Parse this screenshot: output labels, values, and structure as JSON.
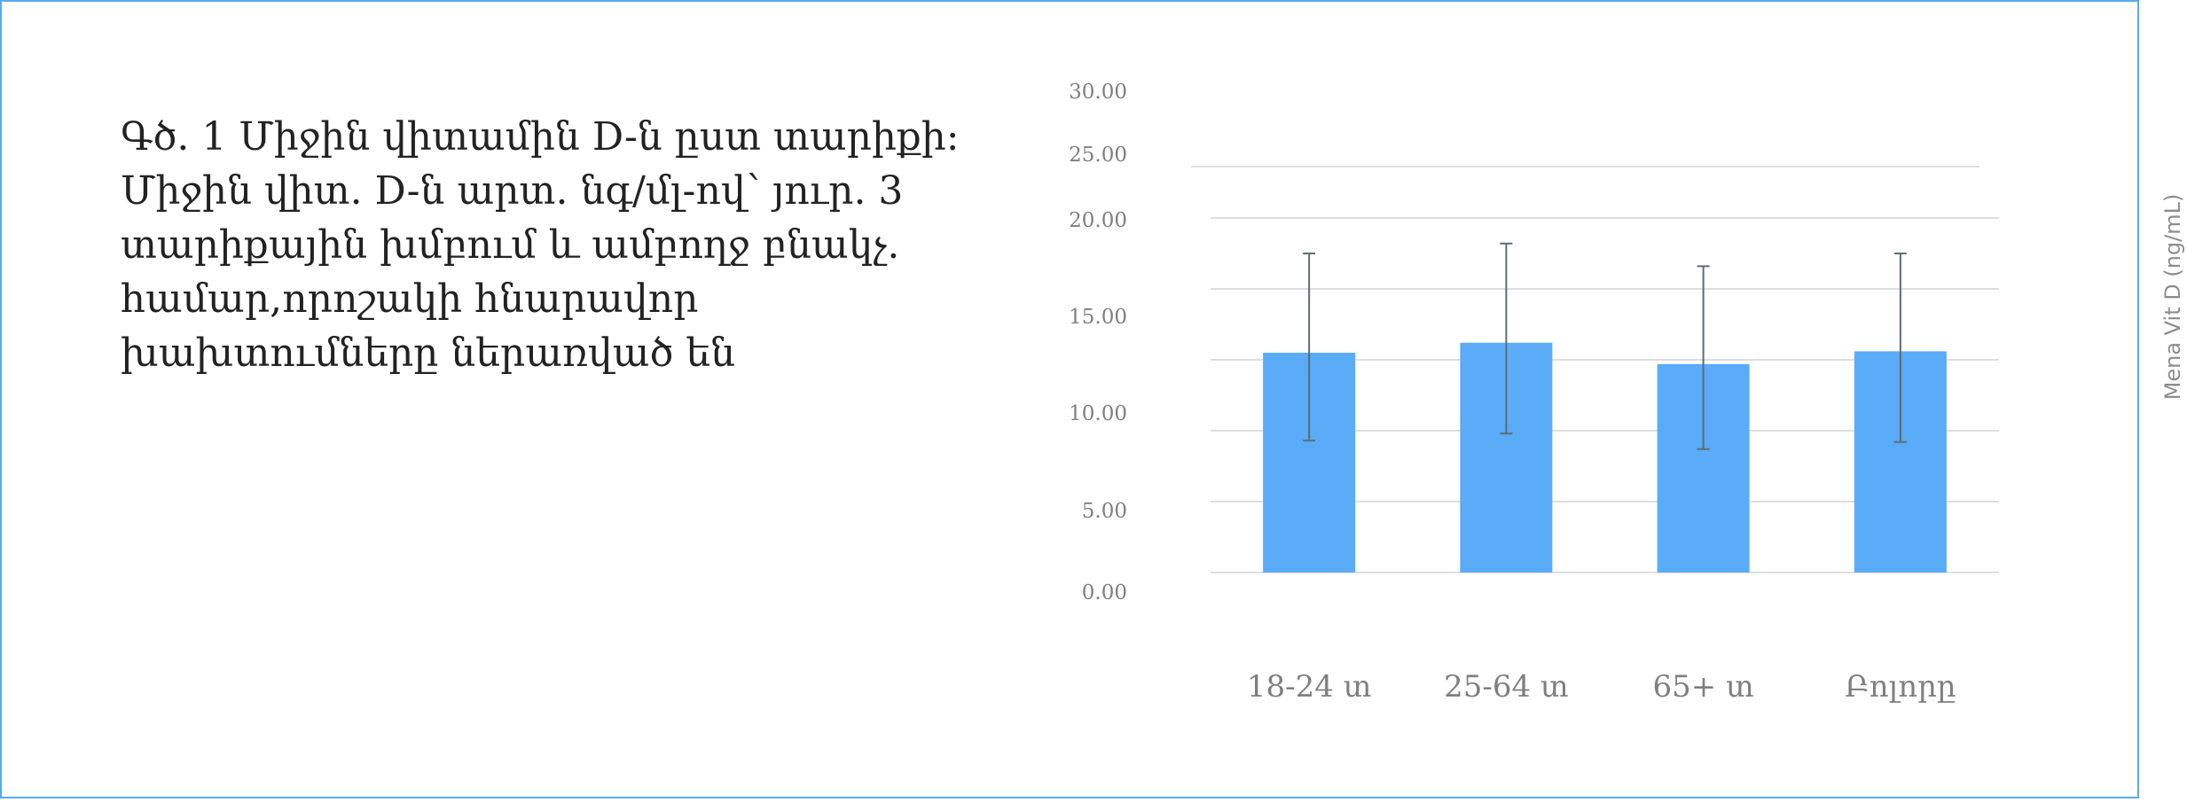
{
  "caption": {
    "lines": [
      "Գծ. 1 Միջին վիտամին D-ն ըստ տարիքի:",
      "Միջին վիտ. D-ն արտ. նգ/մլ-ով՝ յուր. 3",
      "տարիքային խմբում և ամբողջ բնակչ.",
      "համար,որոշակի հնարավոր",
      "խախտումները ներառված են"
    ]
  },
  "chart_data": {
    "type": "bar",
    "categories": [
      "18-24 տ",
      "25-64 տ",
      "65+ տ",
      "Բոլորը"
    ],
    "series": [
      {
        "values": [
          15.5,
          16.2,
          14.7,
          15.6
        ],
        "error_low": [
          9.3,
          9.8,
          8.7,
          9.2
        ],
        "error_high": [
          22.5,
          23.2,
          21.6,
          22.5
        ]
      }
    ],
    "ytick_labels": [
      "0.00",
      "5.00",
      "10.00",
      "15.00",
      "20.00",
      "25.00",
      "30.00"
    ],
    "ytick_values": [
      0,
      5,
      10,
      15,
      20,
      25,
      30
    ],
    "ylim": [
      0,
      30
    ],
    "ylabel": "Mena Vit D (ng/mL)",
    "grid": true,
    "legend": "none",
    "colors": {
      "bar": "#5aabf8",
      "error_bar": "#5d6d73",
      "grid": "#dedede",
      "frame": "#5aa9ee"
    }
  }
}
